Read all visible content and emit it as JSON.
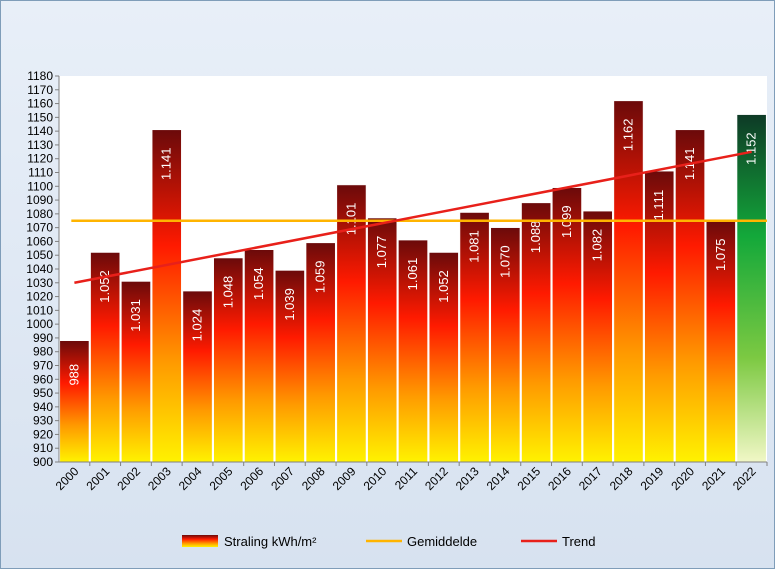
{
  "chart_data": {
    "type": "bar",
    "title": "",
    "xlabel": "",
    "ylabel": "",
    "ylim": [
      900,
      1180
    ],
    "ytick_step": 10,
    "categories": [
      "2000",
      "2001",
      "2002",
      "2003",
      "2004",
      "2005",
      "2006",
      "2007",
      "2008",
      "2009",
      "2010",
      "2011",
      "2012",
      "2013",
      "2014",
      "2015",
      "2016",
      "2017",
      "2018",
      "2019",
      "2020",
      "2021",
      "2022"
    ],
    "values": [
      988,
      1052,
      1031,
      1141,
      1024,
      1048,
      1054,
      1039,
      1059,
      1101,
      1077,
      1061,
      1052,
      1081,
      1070,
      1088,
      1099,
      1082,
      1162,
      1111,
      1141,
      1075,
      1152
    ],
    "value_labels": [
      "988",
      "1.052",
      "1.031",
      "1.141",
      "1.024",
      "1.048",
      "1.054",
      "1.039",
      "1.059",
      "1.101",
      "1.077",
      "1.061",
      "1.052",
      "1.081",
      "1.070",
      "1.088",
      "1.099",
      "1.082",
      "1.162",
      "1.111",
      "1.141",
      "1.075",
      "1.152"
    ],
    "highlight_category": "2022",
    "average": 1075,
    "trend": {
      "start": 1030,
      "end": 1125
    },
    "legend": [
      {
        "label": "Straling kWh/m²",
        "kind": "bar"
      },
      {
        "label": "Gemiddelde",
        "kind": "line",
        "color": "#ffb400"
      },
      {
        "label": "Trend",
        "kind": "line",
        "color": "#e8201a"
      }
    ],
    "legend_position": "bottom",
    "grid": false
  }
}
